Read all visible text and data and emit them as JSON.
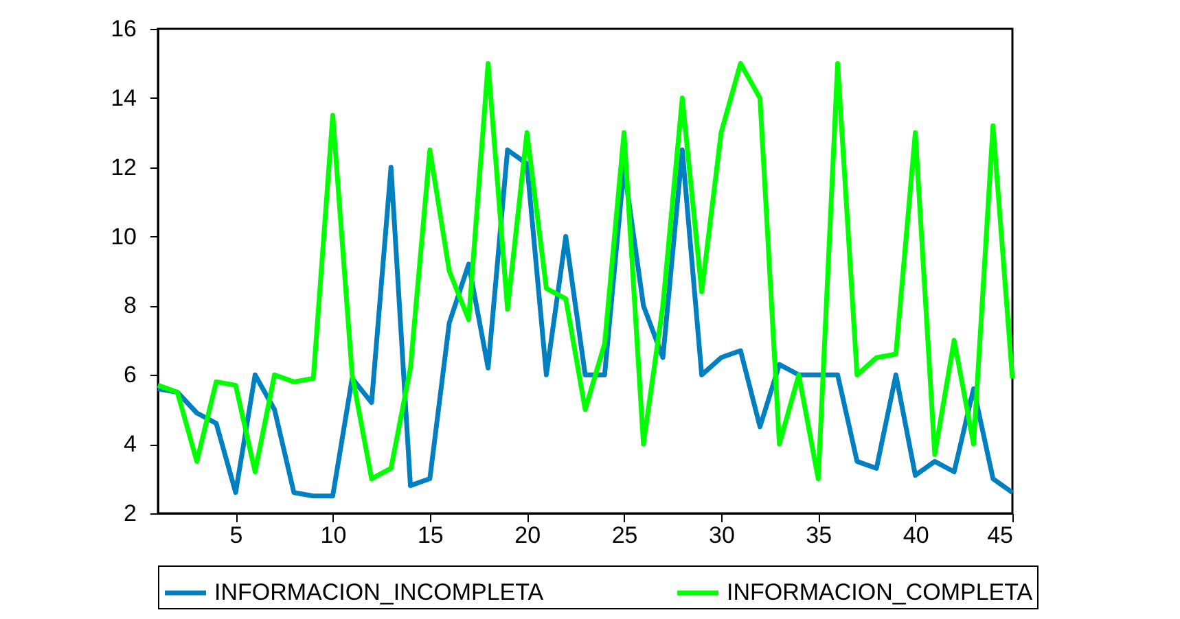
{
  "chart_data": {
    "type": "line",
    "x": [
      1,
      2,
      3,
      4,
      5,
      6,
      7,
      8,
      9,
      10,
      11,
      12,
      13,
      14,
      15,
      16,
      17,
      18,
      19,
      20,
      21,
      22,
      23,
      24,
      25,
      26,
      27,
      28,
      29,
      30,
      31,
      32,
      33,
      34,
      35,
      36,
      37,
      38,
      39,
      40,
      41,
      42,
      43,
      44,
      45
    ],
    "series": [
      {
        "name": "INFORMACION_INCOMPLETA",
        "color": "#0080c0",
        "values": [
          5.6,
          5.5,
          4.9,
          4.6,
          2.6,
          6.0,
          5.0,
          2.6,
          2.5,
          2.5,
          5.9,
          5.2,
          12.0,
          2.8,
          3.0,
          7.5,
          9.2,
          6.2,
          12.5,
          12.1,
          6.0,
          10.0,
          6.0,
          6.0,
          12.0,
          8.0,
          6.5,
          12.5,
          6.0,
          6.5,
          6.7,
          4.5,
          6.3,
          6.0,
          6.0,
          6.0,
          3.5,
          3.3,
          6.0,
          3.1,
          3.5,
          3.2,
          5.6,
          3.0,
          2.6
        ]
      },
      {
        "name": "INFORMACION_COMPLETA",
        "color": "#00ff00",
        "values": [
          5.7,
          5.5,
          3.5,
          5.8,
          5.7,
          3.2,
          6.0,
          5.8,
          5.9,
          13.5,
          6.0,
          3.0,
          3.3,
          6.2,
          12.5,
          9.0,
          7.6,
          15.0,
          7.9,
          13.0,
          8.5,
          8.2,
          5.0,
          6.9,
          13.0,
          4.0,
          8.0,
          14.0,
          8.4,
          13.0,
          15.0,
          14.0,
          4.0,
          6.0,
          3.0,
          15.0,
          6.0,
          6.5,
          6.6,
          13.0,
          3.7,
          7.0,
          4.0,
          13.2,
          5.9
        ]
      }
    ],
    "xlim": [
      1,
      45
    ],
    "xticks": [
      5,
      10,
      15,
      20,
      25,
      30,
      35,
      40,
      45
    ],
    "ylim": [
      2,
      16
    ],
    "yticks": [
      2,
      4,
      6,
      8,
      10,
      12,
      14,
      16
    ],
    "legend": "bottom",
    "marker": "none",
    "line_style": "solid"
  }
}
